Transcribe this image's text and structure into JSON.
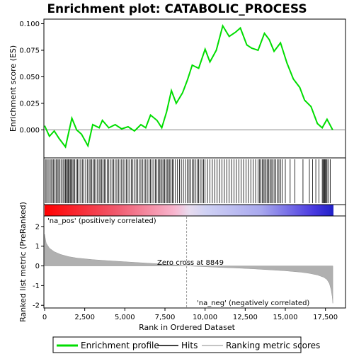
{
  "chart_data": {
    "type": "line",
    "title": "Enrichment plot: CATABOLIC_PROCESS",
    "xlabel": "Rank in Ordered Dataset",
    "ylabel_top": "Enrichment score (ES)",
    "ylabel_bottom": "Ranked list metric (PreRanked)",
    "xlim": [
      0,
      18000
    ],
    "x_ticks": [
      0,
      2500,
      5000,
      7500,
      10000,
      12500,
      15000,
      17500
    ],
    "x_tick_labels": [
      "0",
      "2,500",
      "5,000",
      "7,500",
      "10,000",
      "12,500",
      "15,000",
      "17,500"
    ],
    "es_ylim": [
      -0.025,
      0.103
    ],
    "es_ticks": [
      0,
      0.025,
      0.05,
      0.075,
      0.1
    ],
    "es_tick_labels": [
      "0.000",
      "0.025",
      "0.050",
      "0.075",
      "0.100"
    ],
    "metric_ylim": [
      -2.1,
      2.5
    ],
    "metric_ticks": [
      -2,
      -1,
      0,
      1,
      2
    ],
    "metric_tick_labels": [
      "-2",
      "-1",
      "0",
      "1",
      "2"
    ],
    "enrichment_profile": {
      "name": "Enrichment profile",
      "color": "#00dd00",
      "points": [
        [
          0,
          0.004
        ],
        [
          300,
          -0.006
        ],
        [
          600,
          -0.001
        ],
        [
          900,
          -0.008
        ],
        [
          1300,
          -0.016
        ],
        [
          1700,
          0.011
        ],
        [
          2000,
          0.0
        ],
        [
          2300,
          -0.004
        ],
        [
          2700,
          -0.015
        ],
        [
          3000,
          0.005
        ],
        [
          3400,
          0.002
        ],
        [
          3600,
          0.009
        ],
        [
          4000,
          0.002
        ],
        [
          4400,
          0.005
        ],
        [
          4800,
          0.001
        ],
        [
          5200,
          0.003
        ],
        [
          5600,
          -0.001
        ],
        [
          6000,
          0.005
        ],
        [
          6300,
          0.002
        ],
        [
          6600,
          0.014
        ],
        [
          7000,
          0.009
        ],
        [
          7300,
          0.002
        ],
        [
          7600,
          0.017
        ],
        [
          7900,
          0.037
        ],
        [
          8200,
          0.025
        ],
        [
          8600,
          0.035
        ],
        [
          8900,
          0.047
        ],
        [
          9200,
          0.061
        ],
        [
          9600,
          0.058
        ],
        [
          10000,
          0.076
        ],
        [
          10300,
          0.064
        ],
        [
          10700,
          0.075
        ],
        [
          11100,
          0.098
        ],
        [
          11500,
          0.088
        ],
        [
          11900,
          0.092
        ],
        [
          12200,
          0.096
        ],
        [
          12600,
          0.08
        ],
        [
          12900,
          0.077
        ],
        [
          13300,
          0.075
        ],
        [
          13700,
          0.091
        ],
        [
          14000,
          0.085
        ],
        [
          14300,
          0.074
        ],
        [
          14700,
          0.082
        ],
        [
          15100,
          0.063
        ],
        [
          15500,
          0.048
        ],
        [
          15900,
          0.04
        ],
        [
          16200,
          0.028
        ],
        [
          16600,
          0.022
        ],
        [
          17000,
          0.006
        ],
        [
          17300,
          0.002
        ],
        [
          17600,
          0.01
        ],
        [
          17950,
          0.0
        ]
      ]
    },
    "hits": {
      "name": "Hits",
      "color": "#000000",
      "positions": [
        50,
        130,
        220,
        320,
        400,
        480,
        560,
        650,
        720,
        800,
        880,
        960,
        1050,
        1150,
        1230,
        1300,
        1360,
        1420,
        1480,
        1540,
        1600,
        1660,
        1720,
        1800,
        1880,
        1960,
        2050,
        2150,
        2250,
        2350,
        2450,
        2560,
        2680,
        2780,
        2860,
        2940,
        3020,
        3100,
        3200,
        3300,
        3400,
        3480,
        3560,
        3640,
        3720,
        3800,
        3900,
        4000,
        4100,
        4200,
        4300,
        4400,
        4500,
        4600,
        4700,
        4800,
        4900,
        5000,
        5100,
        5200,
        5300,
        5400,
        5500,
        5600,
        5700,
        5800,
        5900,
        6000,
        6100,
        6200,
        6300,
        6400,
        6500,
        6600,
        6700,
        6800,
        6900,
        7000,
        7080,
        7160,
        7240,
        7320,
        7400,
        7480,
        7560,
        7640,
        7720,
        7800,
        7880,
        7960,
        8040,
        8150,
        8280,
        8400,
        8520,
        8650,
        8780,
        8900,
        9000,
        9100,
        9200,
        9300,
        9400,
        9500,
        9600,
        9700,
        9800,
        9900,
        10000,
        10150,
        10300,
        10450,
        10600,
        10750,
        10900,
        11050,
        11200,
        11350,
        11500,
        11650,
        11800,
        11950,
        12100,
        12250,
        12400,
        12550,
        12700,
        12850,
        13000,
        13150,
        13300,
        13400,
        13480,
        13560,
        13640,
        13720,
        13800,
        13880,
        13960,
        14040,
        14120,
        14200,
        14300,
        14400,
        14500,
        14600,
        14700,
        14800,
        15000,
        15300,
        15600,
        16100,
        16500,
        16700,
        16900,
        17100,
        17300,
        17350,
        17400,
        17450,
        17500,
        17550,
        17600,
        17700,
        17800
      ]
    },
    "ranking_metric": {
      "name": "Ranking metric scores",
      "color": "#b0b0b0",
      "points": [
        [
          0,
          1.6
        ],
        [
          100,
          1.15
        ],
        [
          300,
          0.9
        ],
        [
          600,
          0.72
        ],
        [
          1000,
          0.58
        ],
        [
          1500,
          0.47
        ],
        [
          2000,
          0.4
        ],
        [
          3000,
          0.32
        ],
        [
          4000,
          0.26
        ],
        [
          5000,
          0.21
        ],
        [
          6000,
          0.16
        ],
        [
          7000,
          0.11
        ],
        [
          8000,
          0.06
        ],
        [
          8849,
          0.0
        ],
        [
          10000,
          -0.04
        ],
        [
          11000,
          -0.08
        ],
        [
          12000,
          -0.11
        ],
        [
          13000,
          -0.15
        ],
        [
          14000,
          -0.2
        ],
        [
          15000,
          -0.25
        ],
        [
          16000,
          -0.32
        ],
        [
          16500,
          -0.38
        ],
        [
          17000,
          -0.46
        ],
        [
          17400,
          -0.58
        ],
        [
          17600,
          -0.7
        ],
        [
          17750,
          -0.9
        ],
        [
          17850,
          -1.2
        ],
        [
          17920,
          -1.55
        ],
        [
          17960,
          -1.9
        ]
      ]
    },
    "zero_cross_label": "Zero cross at 8849",
    "zero_cross": 8849,
    "pos_label": "'na_pos' (positively correlated)",
    "neg_label": "'na_neg' (negatively correlated)",
    "pos_label_color": "#cc0000",
    "neg_label_color": "#0000cc",
    "legend": [
      "Enrichment profile",
      "Hits",
      "Ranking metric scores"
    ]
  }
}
